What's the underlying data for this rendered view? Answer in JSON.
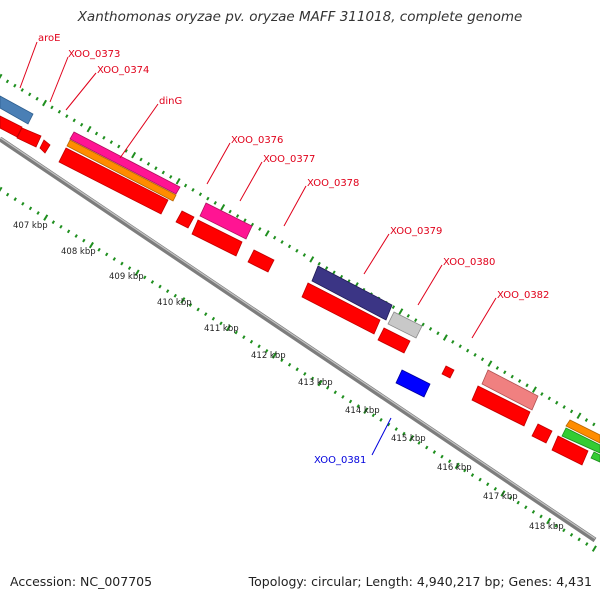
{
  "header": {
    "title": "Xanthomonas oryzae pv. oryzae MAFF 311018, complete genome"
  },
  "footer": {
    "accession": "Accession: NC_007705",
    "summary": "Topology: circular; Length: 4,940,217 bp; Genes: 4,431"
  },
  "colors": {
    "backbone": "#8e8e8e",
    "gene_label": "#e0001a",
    "blue_label": "#0000dd",
    "tick_dots": "#1f8f1f"
  },
  "gene_labels": [
    {
      "text": "aroE",
      "color": "#e0001a"
    },
    {
      "text": "XOO_0373",
      "color": "#e0001a"
    },
    {
      "text": "XOO_0374",
      "color": "#e0001a"
    },
    {
      "text": "dinG",
      "color": "#e0001a"
    },
    {
      "text": "XOO_0376",
      "color": "#e0001a"
    },
    {
      "text": "XOO_0377",
      "color": "#e0001a"
    },
    {
      "text": "XOO_0378",
      "color": "#e0001a"
    },
    {
      "text": "XOO_0379",
      "color": "#e0001a"
    },
    {
      "text": "XOO_0380",
      "color": "#e0001a"
    },
    {
      "text": "XOO_0382",
      "color": "#e0001a"
    },
    {
      "text": "XOO_0381",
      "color": "#0000dd"
    }
  ],
  "kbp_labels": [
    "407 kbp",
    "408 kbp",
    "409 kbp",
    "410 kbp",
    "411 kbp",
    "412 kbp",
    "413 kbp",
    "414 kbp",
    "415 kbp",
    "416 kbp",
    "417 kbp",
    "418 kbp"
  ],
  "feature_colors": [
    "#4a7fb5",
    "#ff0000",
    "#ff1493",
    "#ff8c00",
    "#3b3585",
    "#c8c8c8",
    "#0000ff",
    "#f08080",
    "#33cc33"
  ]
}
